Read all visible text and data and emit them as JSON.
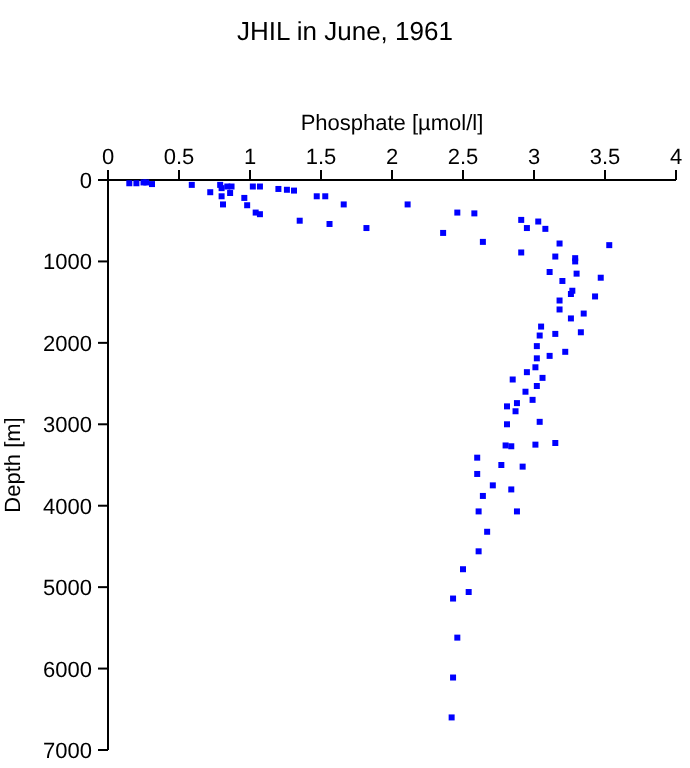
{
  "chart_data": {
    "type": "scatter",
    "title": "JHIL in June, 1961",
    "xlabel": "Phosphate [µmol/l]",
    "ylabel": "Depth [m]",
    "xlim": [
      0,
      4
    ],
    "xticks": [
      0,
      0.5,
      1,
      1.5,
      2,
      2.5,
      3,
      3.5,
      4
    ],
    "ylim": [
      7000,
      0
    ],
    "yticks": [
      0,
      1000,
      2000,
      3000,
      4000,
      5000,
      6000,
      7000
    ],
    "marker": "square",
    "series": [
      {
        "color": "#0000ff",
        "x": [
          0.15,
          0.2,
          0.25,
          0.27,
          0.31,
          0.59,
          0.72,
          0.79,
          0.8,
          0.84,
          0.87,
          0.8,
          0.81,
          0.86,
          0.96,
          0.98,
          1.02,
          1.07,
          1.04,
          1.07,
          1.2,
          1.26,
          1.31,
          1.35,
          1.47,
          1.53,
          1.56,
          1.66,
          1.82,
          2.11,
          2.36,
          2.46,
          2.58,
          2.64,
          2.91,
          2.95,
          3.03,
          3.08,
          3.18,
          3.53,
          2.91,
          3.15,
          3.29,
          3.29,
          3.11,
          3.3,
          3.2,
          3.47,
          3.27,
          3.26,
          3.43,
          3.18,
          3.18,
          3.26,
          3.35,
          3.05,
          3.04,
          3.15,
          3.33,
          3.02,
          3.11,
          3.22,
          3.02,
          3.01,
          2.95,
          3.06,
          2.85,
          3.02,
          2.94,
          2.99,
          2.88,
          2.81,
          2.87,
          2.81,
          3.04,
          2.8,
          2.84,
          3.01,
          3.15,
          2.6,
          2.77,
          2.92,
          2.6,
          2.71,
          2.84,
          2.64,
          2.61,
          2.88,
          2.67,
          2.61,
          2.5,
          2.54,
          2.43,
          2.46,
          2.43,
          2.42
        ],
        "values": [
          40,
          40,
          30,
          30,
          50,
          60,
          150,
          60,
          100,
          80,
          80,
          200,
          300,
          160,
          220,
          310,
          80,
          80,
          400,
          420,
          110,
          120,
          130,
          500,
          200,
          200,
          540,
          300,
          590,
          300,
          650,
          400,
          410,
          760,
          490,
          590,
          510,
          600,
          780,
          800,
          890,
          940,
          960,
          1000,
          1130,
          1150,
          1240,
          1200,
          1360,
          1400,
          1430,
          1480,
          1590,
          1700,
          1640,
          1800,
          1910,
          1890,
          1870,
          2040,
          2160,
          2110,
          2190,
          2300,
          2360,
          2430,
          2450,
          2530,
          2600,
          2700,
          2740,
          2780,
          2840,
          3000,
          2970,
          3260,
          3270,
          3250,
          3230,
          3410,
          3500,
          3520,
          3610,
          3750,
          3800,
          3880,
          4070,
          4070,
          4320,
          4560,
          4780,
          5060,
          5140,
          5620,
          6110,
          6600
        ]
      }
    ]
  }
}
